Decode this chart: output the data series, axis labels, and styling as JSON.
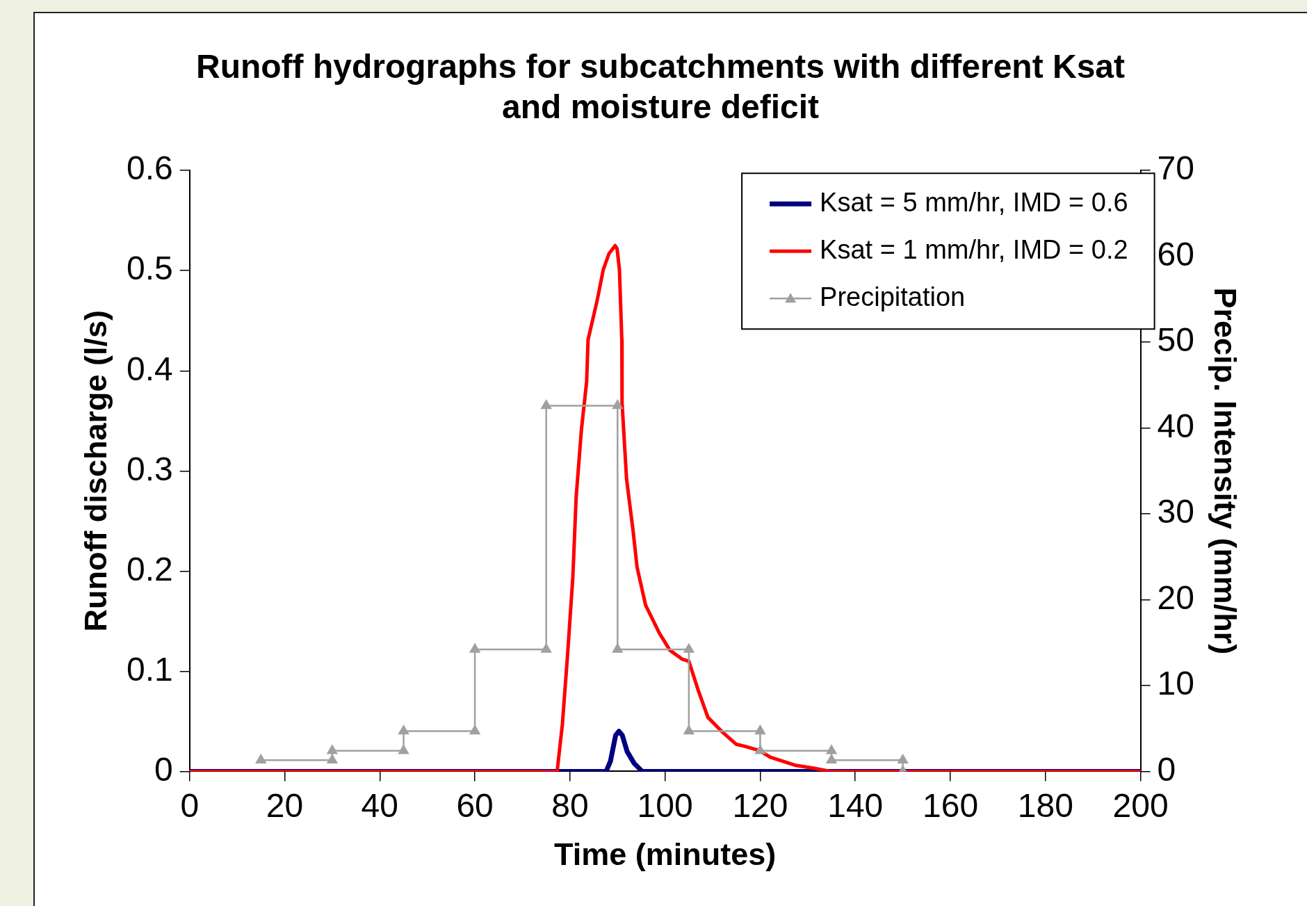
{
  "chart_data": {
    "type": "line",
    "title": "Runoff hydrographs for subcatchments with different Ksat and moisture deficit",
    "xlabel": "Time (minutes)",
    "ylabel": "Runoff discharge (l/s)",
    "y2label": "Precip. Intensity (mm/hr)",
    "xlim": [
      0,
      200
    ],
    "xticks": [
      0,
      20,
      40,
      60,
      80,
      100,
      120,
      140,
      160,
      180,
      200
    ],
    "ylim": [
      0,
      0.6
    ],
    "yticks": [
      0,
      0.1,
      0.2,
      0.3,
      0.4,
      0.5,
      0.6
    ],
    "y2lim": [
      0,
      70
    ],
    "y2ticks": [
      0,
      10,
      20,
      30,
      40,
      50,
      60,
      70
    ],
    "grid": false,
    "legend": "top right",
    "line_style": "solid",
    "series": [
      {
        "name": "Ksat = 5 mm/hr, IMD = 0.6",
        "color": "#000080",
        "marker": "none",
        "x": [
          0,
          87.6,
          88.5,
          89.6,
          90.3,
          91.0,
          92.0,
          93.5,
          95.2,
          200
        ],
        "values": [
          0,
          0,
          0.01,
          0.036,
          0.04,
          0.036,
          0.02,
          0.008,
          0,
          0
        ]
      },
      {
        "name": "Ksat = 1 mm/hr, IMD = 0.2",
        "color": "#ff0000",
        "marker": "none",
        "x": [
          0,
          77.3,
          78.4,
          79.5,
          80.6,
          81.3,
          82.4,
          83.5,
          83.8,
          85.7,
          87.0,
          88.2,
          89.5,
          89.9,
          90.4,
          90.9,
          90.95,
          91.9,
          93.3,
          94.1,
          95.9,
          98.8,
          101.0,
          103.6,
          105.0,
          106.9,
          109.0,
          111.9,
          115.0,
          116.8,
          119.7,
          122.2,
          127.5,
          131.4,
          134.8,
          200
        ],
        "values": [
          0,
          0,
          0.047,
          0.117,
          0.194,
          0.274,
          0.341,
          0.389,
          0.431,
          0.47,
          0.501,
          0.517,
          0.525,
          0.522,
          0.501,
          0.431,
          0.368,
          0.292,
          0.239,
          0.204,
          0.166,
          0.138,
          0.121,
          0.112,
          0.11,
          0.082,
          0.054,
          0.04,
          0.027,
          0.025,
          0.021,
          0.014,
          0.006,
          0.003,
          0,
          0
        ]
      },
      {
        "name": "Precipitation",
        "color": "#a0a0a0",
        "marker": "triangle",
        "axis": "y2",
        "x": [
          15,
          30,
          30,
          45,
          45,
          60,
          60,
          75,
          75,
          90,
          90,
          105,
          105,
          120,
          120,
          135,
          135,
          150,
          150
        ],
        "values": [
          1.3,
          1.3,
          2.4,
          2.4,
          4.7,
          4.7,
          14.2,
          14.2,
          42.6,
          42.6,
          14.2,
          14.2,
          4.7,
          4.7,
          2.4,
          2.4,
          1.3,
          1.3,
          0
        ]
      }
    ]
  }
}
